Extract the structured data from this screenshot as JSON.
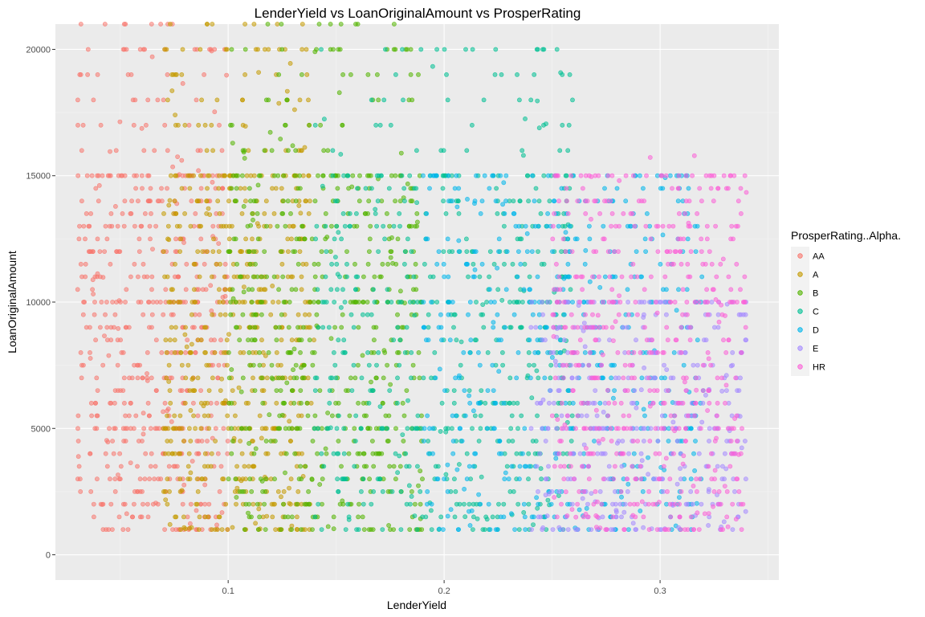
{
  "chart_data": {
    "type": "scatter",
    "title": "LenderYield vs LoanOriginalAmount vs ProsperRating",
    "xlabel": "LenderYield",
    "ylabel": "LoanOriginalAmount",
    "xlim": [
      0.02,
      0.355
    ],
    "ylim": [
      -1000,
      21000
    ],
    "x_ticks": [
      0.1,
      0.2,
      0.3
    ],
    "x_tick_labels": [
      "0.1",
      "0.2",
      "0.3"
    ],
    "y_ticks": [
      0,
      5000,
      10000,
      15000,
      20000
    ],
    "y_tick_labels": [
      "0",
      "5000",
      "10000",
      "15000",
      "20000"
    ],
    "grid": true,
    "background": "#ebebeb",
    "legend": {
      "title": "ProsperRating..Alpha.",
      "placement": "right",
      "entries": [
        "AA",
        "A",
        "B",
        "C",
        "D",
        "E",
        "HR"
      ]
    },
    "point_opacity": 0.55,
    "amount_levels": [
      1000,
      1500,
      2000,
      2500,
      3000,
      3500,
      4000,
      4500,
      5000,
      5500,
      6000,
      6500,
      7000,
      7500,
      8000,
      8500,
      9000,
      9500,
      10000,
      10500,
      11000,
      11500,
      12000,
      12500,
      13000,
      13500,
      14000,
      14500,
      15000,
      16000,
      17000,
      18000,
      19000,
      20000,
      21000
    ],
    "series": [
      {
        "name": "AA",
        "color": "#F8766D",
        "yield_range": [
          0.03,
          0.1
        ],
        "amount_max": 21000
      },
      {
        "name": "A",
        "color": "#C49A00",
        "yield_range": [
          0.07,
          0.14
        ],
        "amount_max": 21000
      },
      {
        "name": "B",
        "color": "#53B400",
        "yield_range": [
          0.1,
          0.19
        ],
        "amount_max": 21000
      },
      {
        "name": "C",
        "color": "#00C094",
        "yield_range": [
          0.14,
          0.26
        ],
        "amount_max": 20000
      },
      {
        "name": "D",
        "color": "#00B6EB",
        "yield_range": [
          0.19,
          0.32
        ],
        "amount_max": 15000
      },
      {
        "name": "E",
        "color": "#A58AFF",
        "yield_range": [
          0.24,
          0.34
        ],
        "amount_max": 10000
      },
      {
        "name": "HR",
        "color": "#FB61D7",
        "yield_range": [
          0.25,
          0.34
        ],
        "amount_max": 15800
      }
    ]
  }
}
